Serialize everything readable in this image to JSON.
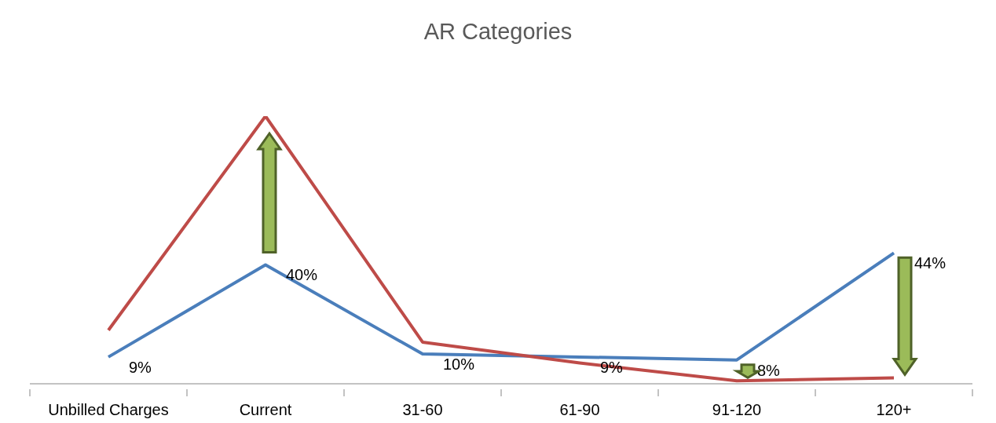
{
  "chart_data": {
    "type": "line",
    "title": "AR Categories",
    "categories": [
      "Unbilled Charges",
      "Current",
      "31-60",
      "61-90",
      "91-120",
      "120+"
    ],
    "series": [
      {
        "color": "#4a7ebb",
        "values": [
          9,
          40,
          10,
          9,
          8,
          44
        ],
        "value_labels": [
          "9%",
          "40%",
          "10%",
          "9%",
          "8%",
          "44%"
        ]
      },
      {
        "color": "#be4b48",
        "values": [
          18,
          90,
          14,
          7,
          1,
          2
        ]
      }
    ],
    "marker": "none",
    "line_style": "solid"
  }
}
